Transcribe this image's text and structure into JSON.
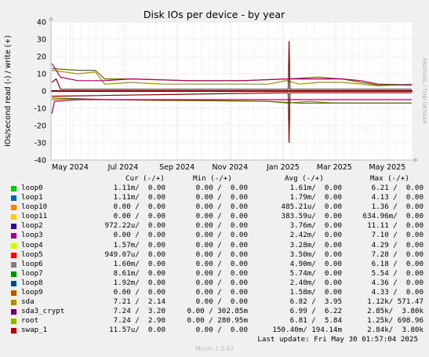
{
  "chart_data": {
    "type": "line",
    "title": "Disk IOs per device - by year",
    "ylabel": "IOs/second read (-) / write (+)",
    "ylim": [
      -40,
      40
    ],
    "y_ticks": [
      "40",
      "30",
      "20",
      "10",
      "0",
      "-10",
      "-20",
      "-30",
      "-40"
    ],
    "y_tick_values": [
      40,
      30,
      20,
      10,
      0,
      -10,
      -20,
      -30,
      -40
    ],
    "x_ticks": [
      "May 2024",
      "Jul 2024",
      "Sep 2024",
      "Nov 2024",
      "Jan 2025",
      "Mar 2025",
      "May 2025"
    ],
    "x_tick_dates": [
      "2024-05-01",
      "2024-07-01",
      "2024-09-01",
      "2024-11-01",
      "2025-01-01",
      "2025-03-01",
      "2025-05-01"
    ],
    "xlim": [
      "2024-04-09",
      "2025-05-30"
    ],
    "grid": true,
    "watermark": "RRDTOOL / TOBI OETIKER",
    "series": [
      {
        "name": "sda",
        "color": "#a08f00",
        "write": [
          [
            "2024-04-10",
            12
          ],
          [
            "2024-04-25",
            11
          ],
          [
            "2024-05-10",
            10
          ],
          [
            "2024-05-30",
            11
          ],
          [
            "2024-06-10",
            4
          ],
          [
            "2024-07-10",
            5
          ],
          [
            "2024-08-15",
            4
          ],
          [
            "2024-09-15",
            4
          ],
          [
            "2024-10-15",
            4
          ],
          [
            "2024-11-15",
            4
          ],
          [
            "2024-12-15",
            4
          ],
          [
            "2025-01-05",
            6
          ],
          [
            "2025-01-20",
            4
          ],
          [
            "2025-02-10",
            5
          ],
          [
            "2025-03-10",
            5
          ],
          [
            "2025-04-01",
            4
          ],
          [
            "2025-04-20",
            3
          ],
          [
            "2025-05-29",
            4
          ]
        ],
        "read": [
          [
            "2024-04-10",
            -5
          ],
          [
            "2024-05-10",
            -4.5
          ],
          [
            "2024-06-15",
            -5
          ],
          [
            "2024-08-15",
            -5.5
          ],
          [
            "2024-10-15",
            -5.5
          ],
          [
            "2024-12-15",
            -6
          ],
          [
            "2025-01-05",
            -7
          ],
          [
            "2025-02-01",
            -6
          ],
          [
            "2025-03-01",
            -7
          ],
          [
            "2025-04-01",
            -7
          ],
          [
            "2025-05-29",
            -7
          ]
        ]
      },
      {
        "name": "root",
        "color": "#666600",
        "write": [
          [
            "2024-04-10",
            13
          ],
          [
            "2024-05-10",
            12
          ],
          [
            "2024-05-30",
            12
          ],
          [
            "2024-06-10",
            7
          ],
          [
            "2024-07-10",
            7
          ],
          [
            "2024-09-15",
            6
          ],
          [
            "2024-11-15",
            6
          ],
          [
            "2025-01-05",
            7
          ],
          [
            "2025-02-10",
            8
          ],
          [
            "2025-03-10",
            7
          ],
          [
            "2025-04-01",
            5
          ],
          [
            "2025-04-20",
            3.5
          ],
          [
            "2025-05-29",
            3.5
          ]
        ],
        "read": [
          [
            "2024-04-10",
            -4
          ],
          [
            "2024-05-10",
            -4.5
          ],
          [
            "2024-06-15",
            -5
          ],
          [
            "2024-09-15",
            -5.5
          ],
          [
            "2024-12-15",
            -6
          ],
          [
            "2025-01-20",
            -7
          ],
          [
            "2025-03-01",
            -7
          ],
          [
            "2025-05-29",
            -7
          ]
        ]
      },
      {
        "name": "sda3_crypt",
        "color": "#b00060",
        "write": [
          [
            "2024-04-10",
            16
          ],
          [
            "2024-04-20",
            8
          ],
          [
            "2024-05-10",
            6
          ],
          [
            "2024-06-10",
            6
          ],
          [
            "2024-07-10",
            7
          ],
          [
            "2024-09-15",
            6
          ],
          [
            "2024-11-15",
            6
          ],
          [
            "2025-01-05",
            7
          ],
          [
            "2025-02-10",
            7
          ],
          [
            "2025-03-10",
            7
          ],
          [
            "2025-04-01",
            6
          ],
          [
            "2025-04-20",
            4
          ],
          [
            "2025-05-29",
            3.5
          ]
        ],
        "read": [
          [
            "2024-04-10",
            -13
          ],
          [
            "2024-04-13",
            -6
          ],
          [
            "2024-05-10",
            -5
          ],
          [
            "2025-05-29",
            -5
          ]
        ]
      },
      {
        "name": "swap_1",
        "color": "#8b0000",
        "write": [
          [
            "2024-04-10",
            5
          ],
          [
            "2024-04-15",
            7
          ],
          [
            "2024-04-20",
            1
          ],
          [
            "2025-01-07",
            1
          ],
          [
            "2025-01-08",
            29
          ],
          [
            "2025-01-09",
            1
          ],
          [
            "2025-05-29",
            1
          ]
        ],
        "read": [
          [
            "2024-04-10",
            -3
          ],
          [
            "2025-01-07",
            -1
          ],
          [
            "2025-01-08",
            -30
          ],
          [
            "2025-01-09",
            -1
          ],
          [
            "2025-05-29",
            -1
          ]
        ]
      }
    ]
  },
  "table": {
    "headers": {
      "cur": "Cur (-/+)",
      "min": "Min (-/+)",
      "avg": "Avg (-/+)",
      "max": "Max (-/+)"
    },
    "rows": [
      {
        "name": "loop0",
        "color": "#00cc00",
        "cur": "1.11m/  0.00",
        "min": "0.00 /  0.00",
        "avg": "1.61m/  0.00",
        "max": "6.21 /  0.00"
      },
      {
        "name": "loop1",
        "color": "#0066b3",
        "cur": "1.11m/  0.00",
        "min": "0.00 /  0.00",
        "avg": "1.79m/  0.00",
        "max": "4.13 /  0.00"
      },
      {
        "name": "loop10",
        "color": "#ff8000",
        "cur": "0.00 /  0.00",
        "min": "0.00 /  0.00",
        "avg": "485.21u/  0.00",
        "max": "1.36 /  0.00"
      },
      {
        "name": "loop11",
        "color": "#ffcc00",
        "cur": "0.00 /  0.00",
        "min": "0.00 /  0.00",
        "avg": "383.59u/  0.00",
        "max": "634.96m/  0.00"
      },
      {
        "name": "loop2",
        "color": "#330099",
        "cur": "972.22u/  0.00",
        "min": "0.00 /  0.00",
        "avg": "3.76m/  0.00",
        "max": "11.11 /  0.00"
      },
      {
        "name": "loop3",
        "color": "#990099",
        "cur": "0.00 /  0.00",
        "min": "0.00 /  0.00",
        "avg": "2.42m/  0.00",
        "max": "7.10 /  0.00"
      },
      {
        "name": "loop4",
        "color": "#ccff00",
        "cur": "1.57m/  0.00",
        "min": "0.00 /  0.00",
        "avg": "3.28m/  0.00",
        "max": "4.29 /  0.00"
      },
      {
        "name": "loop5",
        "color": "#ff0000",
        "cur": "949.07u/  0.00",
        "min": "0.00 /  0.00",
        "avg": "3.50m/  0.00",
        "max": "7.28 /  0.00"
      },
      {
        "name": "loop6",
        "color": "#808080",
        "cur": "1.60m/  0.00",
        "min": "0.00 /  0.00",
        "avg": "4.90m/  0.00",
        "max": "6.18 /  0.00"
      },
      {
        "name": "loop7",
        "color": "#008f00",
        "cur": "8.61m/  0.00",
        "min": "0.00 /  0.00",
        "avg": "5.74m/  0.00",
        "max": "5.54 /  0.00"
      },
      {
        "name": "loop8",
        "color": "#00487d",
        "cur": "1.92m/  0.00",
        "min": "0.00 /  0.00",
        "avg": "2.40m/  0.00",
        "max": "4.36 /  0.00"
      },
      {
        "name": "loop9",
        "color": "#b35a00",
        "cur": "0.00 /  0.00",
        "min": "0.00 /  0.00",
        "avg": "1.58m/  0.00",
        "max": "4.33 /  0.00"
      },
      {
        "name": "sda",
        "color": "#b38f00",
        "cur": "7.21 /  2.14",
        "min": "0.00 /  0.00",
        "avg": "6.82 /  3.95",
        "max": "1.12k/ 571.47"
      },
      {
        "name": "sda3_crypt",
        "color": "#6b006b",
        "cur": "7.24 /  3.20",
        "min": "0.00 / 302.85m",
        "avg": "6.99 /  6.22",
        "max": "2.85k/  3.80k"
      },
      {
        "name": "root",
        "color": "#8fb300",
        "cur": "7.24 /  2.90",
        "min": "0.00 / 280.95m",
        "avg": "6.81 /  5.84",
        "max": "1.25k/ 698.96"
      },
      {
        "name": "swap_1",
        "color": "#b30000",
        "cur": "11.57u/  0.00",
        "min": "0.00 /  0.00",
        "avg": "150.40m/ 194.14m",
        "max": "2.84k/  3.80k"
      }
    ]
  },
  "footer": {
    "last_update": "Last update: Fri May 30 01:57:04 2025",
    "generator": "Munin 2.0.67"
  }
}
